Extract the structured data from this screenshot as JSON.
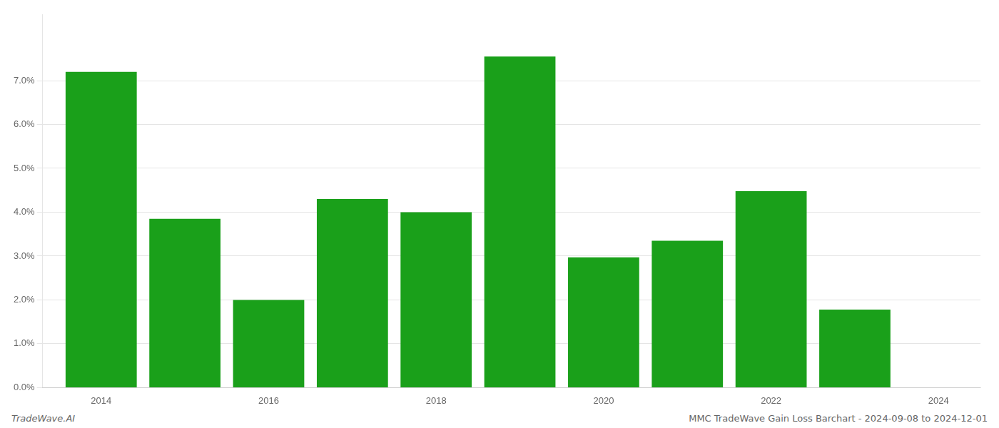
{
  "chart_data": {
    "type": "bar",
    "x": [
      2014,
      2015,
      2016,
      2017,
      2018,
      2019,
      2020,
      2021,
      2022,
      2023
    ],
    "values": [
      0.072,
      0.0385,
      0.02,
      0.043,
      0.04,
      0.0755,
      0.0297,
      0.0335,
      0.0448,
      0.0178
    ],
    "color": "#1aa01a",
    "xlim": [
      2013.3,
      2024.5
    ],
    "xticks": [
      2014,
      2016,
      2018,
      2020,
      2022,
      2024
    ],
    "ylim": [
      0.0,
      0.085
    ],
    "yticks": [
      {
        "value": 0.0,
        "label": "0.0%"
      },
      {
        "value": 0.01,
        "label": "1.0%"
      },
      {
        "value": 0.02,
        "label": "2.0%"
      },
      {
        "value": 0.03,
        "label": "3.0%"
      },
      {
        "value": 0.04,
        "label": "4.0%"
      },
      {
        "value": 0.05,
        "label": "5.0%"
      },
      {
        "value": 0.06,
        "label": "6.0%"
      },
      {
        "value": 0.07,
        "label": "7.0%"
      }
    ],
    "grid": true,
    "annotations": [
      "TradeWave.AI",
      "MMC TradeWave Gain Loss Barchart - 2024-09-08 to 2024-12-01"
    ]
  }
}
